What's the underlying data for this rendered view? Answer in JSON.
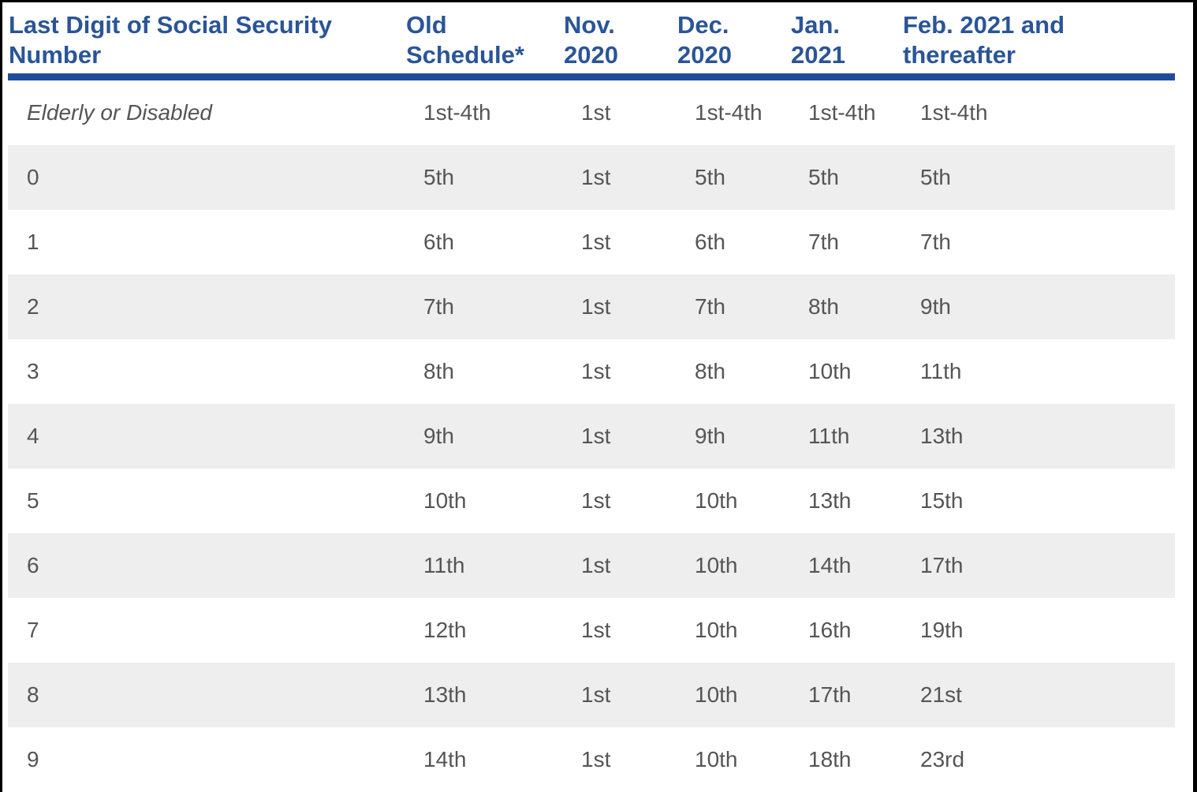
{
  "colors": {
    "header_text": "#2a5597",
    "header_rule": "#1f4d99",
    "row_alt_bg": "#eeeeee",
    "cell_text": "#555555"
  },
  "table": {
    "headers": [
      "Last Digit of Social Security\nNumber",
      "Old\nSchedule*",
      "Nov.\n2020",
      "Dec.\n2020",
      "Jan.\n2021",
      "Feb. 2021 and\nthereafter"
    ],
    "rows": [
      [
        "Elderly or Disabled",
        "1st-4th",
        "1st",
        "1st-4th",
        "1st-4th",
        "1st-4th"
      ],
      [
        "0",
        "5th",
        "1st",
        "5th",
        "5th",
        "5th"
      ],
      [
        "1",
        "6th",
        "1st",
        "6th",
        "7th",
        "7th"
      ],
      [
        "2",
        "7th",
        "1st",
        "7th",
        "8th",
        "9th"
      ],
      [
        "3",
        "8th",
        "1st",
        "8th",
        "10th",
        "11th"
      ],
      [
        "4",
        "9th",
        "1st",
        "9th",
        "11th",
        "13th"
      ],
      [
        "5",
        "10th",
        "1st",
        "10th",
        "13th",
        "15th"
      ],
      [
        "6",
        "11th",
        "1st",
        "10th",
        "14th",
        "17th"
      ],
      [
        "7",
        "12th",
        "1st",
        "10th",
        "16th",
        "19th"
      ],
      [
        "8",
        "13th",
        "1st",
        "10th",
        "17th",
        "21st"
      ],
      [
        "9",
        "14th",
        "1st",
        "10th",
        "18th",
        "23rd"
      ]
    ]
  }
}
